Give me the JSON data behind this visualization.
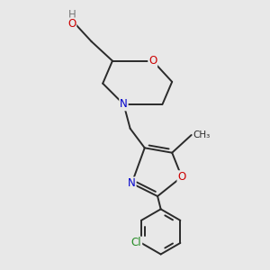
{
  "background_color": "#e8e8e8",
  "bond_color": "#2a2a2a",
  "atom_colors": {
    "O": "#cc0000",
    "N": "#0000cc",
    "Cl": "#228B22",
    "C": "#2a2a2a",
    "H": "#777777"
  },
  "font_size_atoms": 8.5,
  "font_size_small": 7.5,
  "lw": 1.4
}
